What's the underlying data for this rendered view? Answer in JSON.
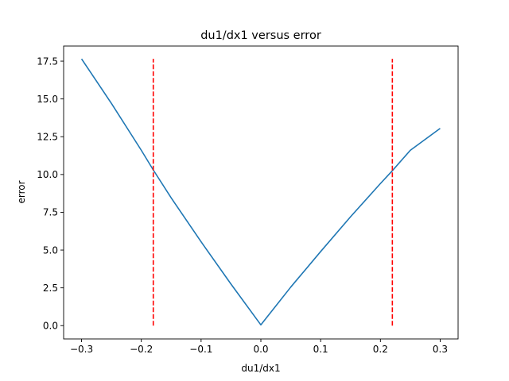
{
  "chart_data": {
    "type": "line",
    "title": "du1/dx1 versus error",
    "xlabel": "du1/dx1",
    "ylabel": "error",
    "xlim": [
      -0.33,
      0.33
    ],
    "ylim": [
      -0.88,
      18.5
    ],
    "xticks": [
      -0.3,
      -0.2,
      -0.1,
      0.0,
      0.1,
      0.2,
      0.3
    ],
    "xtick_labels": [
      "−0.3",
      "−0.2",
      "−0.1",
      "0.0",
      "0.1",
      "0.2",
      "0.3"
    ],
    "yticks": [
      0.0,
      2.5,
      5.0,
      7.5,
      10.0,
      12.5,
      15.0,
      17.5
    ],
    "ytick_labels": [
      "0.0",
      "2.5",
      "5.0",
      "7.5",
      "10.0",
      "12.5",
      "15.0",
      "17.5"
    ],
    "grid": false,
    "series": [
      {
        "color": "#1f77b4",
        "style": "solid",
        "x": [
          -0.3,
          -0.25,
          -0.2,
          -0.18,
          -0.15,
          -0.1,
          -0.05,
          0.0,
          0.05,
          0.1,
          0.15,
          0.2,
          0.22,
          0.25,
          0.3
        ],
        "y": [
          17.65,
          14.7,
          11.6,
          10.3,
          8.45,
          5.55,
          2.75,
          0.05,
          2.55,
          4.9,
          7.2,
          9.4,
          10.25,
          11.6,
          13.05
        ]
      }
    ],
    "vlines": [
      {
        "x": -0.18,
        "ymin": 0.0,
        "ymax": 17.65,
        "color": "#ff0000",
        "style": "dashed"
      },
      {
        "x": 0.22,
        "ymin": 0.0,
        "ymax": 17.65,
        "color": "#ff0000",
        "style": "dashed"
      }
    ]
  }
}
